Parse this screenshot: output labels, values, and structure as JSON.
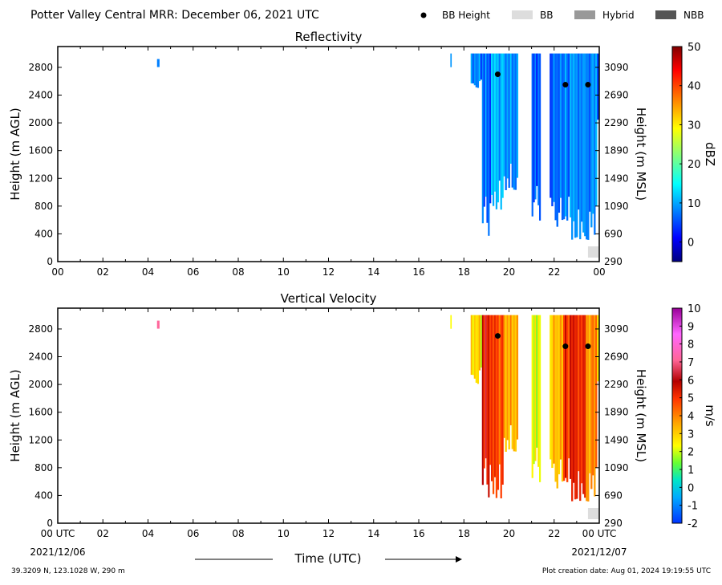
{
  "header": {
    "title": "Potter Valley Central MRR:  December 06, 2021 UTC",
    "legend": [
      {
        "label": "BB Height",
        "symbol": "dot",
        "color": "#000000"
      },
      {
        "label": "BB",
        "symbol": "box",
        "color": "#dddddd"
      },
      {
        "label": "Hybrid",
        "symbol": "box",
        "color": "#999999"
      },
      {
        "label": "NBB",
        "symbol": "box",
        "color": "#555555"
      }
    ]
  },
  "footer": {
    "location": "39.3209 N, 123.1028 W, 290 m",
    "creation": "Plot creation date: Aug 01, 2024 19:19:55 UTC",
    "start_date": "2021/12/06",
    "end_date": "2021/12/07",
    "xlabel": "Time (UTC)"
  },
  "chart_data": [
    {
      "type": "heatmap",
      "title": "Reflectivity",
      "xlabel": "Time (UTC)",
      "ylabel": "Height (m AGL)",
      "ylabel_right": "Height (m MSL)",
      "x_ticks": [
        "00",
        "02",
        "04",
        "06",
        "08",
        "10",
        "12",
        "14",
        "16",
        "18",
        "20",
        "22",
        "00"
      ],
      "xlim": [
        0,
        24
      ],
      "ylim": [
        0,
        3100
      ],
      "y_ticks": [
        0,
        400,
        800,
        1200,
        1600,
        2000,
        2400,
        2800
      ],
      "y_ticks_right": [
        290,
        690,
        1090,
        1490,
        1890,
        2290,
        2690,
        3090
      ],
      "colorbar": {
        "label": "dBZ",
        "range": [
          -5,
          50
        ],
        "ticks": [
          0,
          10,
          20,
          30,
          40,
          50
        ],
        "colormap": "jet"
      },
      "bb_height": [
        [
          19.5,
          2700
        ],
        [
          22.5,
          2550
        ],
        [
          23.5,
          2550
        ]
      ],
      "bb_flag": [
        {
          "x0": 23.5,
          "x1": 24,
          "type": "BB"
        }
      ],
      "echo_columns": [
        {
          "x0": 4.4,
          "x1": 4.5,
          "base": 2800,
          "top": 2920,
          "value": 5
        },
        {
          "x0": 17.4,
          "x1": 17.45,
          "base": 2800,
          "top": 3000,
          "value": 10
        },
        {
          "x0": 18.3,
          "x1": 18.8,
          "base": 2500,
          "top": 3000,
          "value": 9
        },
        {
          "x0": 18.8,
          "x1": 19.2,
          "base": 300,
          "top": 3000,
          "value": 8
        },
        {
          "x0": 19.2,
          "x1": 19.75,
          "base": 700,
          "top": 3000,
          "value": 12
        },
        {
          "x0": 19.75,
          "x1": 20.4,
          "base": 900,
          "top": 3000,
          "value": 9
        },
        {
          "x0": 21.0,
          "x1": 21.4,
          "base": 550,
          "top": 3000,
          "value": 7
        },
        {
          "x0": 21.8,
          "x1": 22.4,
          "base": 500,
          "top": 3000,
          "value": 8
        },
        {
          "x0": 22.4,
          "x1": 23.4,
          "base": 300,
          "top": 3000,
          "value": 10
        },
        {
          "x0": 23.4,
          "x1": 23.9,
          "base": 300,
          "top": 3000,
          "value": 9
        },
        {
          "x0": 23.9,
          "x1": 24.0,
          "base": 2000,
          "top": 3000,
          "value": 6
        }
      ]
    },
    {
      "type": "heatmap",
      "title": "Vertical Velocity",
      "xlabel": "Time (UTC)",
      "ylabel": "Height (m AGL)",
      "ylabel_right": "Height (m MSL)",
      "x_ticks": [
        "00 UTC",
        "02",
        "04",
        "06",
        "08",
        "10",
        "12",
        "14",
        "16",
        "18",
        "20",
        "22",
        "00 UTC"
      ],
      "xlim": [
        0,
        24
      ],
      "ylim": [
        0,
        3100
      ],
      "y_ticks": [
        0,
        400,
        800,
        1200,
        1600,
        2000,
        2400,
        2800
      ],
      "y_ticks_right": [
        290,
        690,
        1090,
        1490,
        1890,
        2290,
        2690,
        3090
      ],
      "colorbar": {
        "label": "m/s",
        "range": [
          -2,
          10
        ],
        "ticks": [
          -2,
          -1,
          0,
          1,
          2,
          3,
          4,
          5,
          6,
          7,
          8,
          9,
          10
        ],
        "colormap": "velocity"
      },
      "bb_height": [
        [
          19.5,
          2700
        ],
        [
          22.5,
          2550
        ],
        [
          23.5,
          2550
        ]
      ],
      "bb_flag": [
        {
          "x0": 23.5,
          "x1": 24,
          "type": "BB"
        }
      ],
      "echo_columns": [
        {
          "x0": 4.4,
          "x1": 4.5,
          "base": 2800,
          "top": 2920,
          "value": 6.5
        },
        {
          "x0": 17.4,
          "x1": 17.45,
          "base": 2800,
          "top": 3000,
          "value": 2.5
        },
        {
          "x0": 18.3,
          "x1": 18.8,
          "base": 2000,
          "top": 3000,
          "value": 3
        },
        {
          "x0": 18.8,
          "x1": 19.2,
          "base": 300,
          "top": 3000,
          "value": 5.8
        },
        {
          "x0": 19.2,
          "x1": 19.75,
          "base": 300,
          "top": 3000,
          "value": 5
        },
        {
          "x0": 19.75,
          "x1": 20.4,
          "base": 900,
          "top": 3000,
          "value": 3.5
        },
        {
          "x0": 21.0,
          "x1": 21.4,
          "base": 550,
          "top": 3000,
          "value": 2.5
        },
        {
          "x0": 21.8,
          "x1": 22.4,
          "base": 500,
          "top": 3000,
          "value": 3.5
        },
        {
          "x0": 22.4,
          "x1": 23.4,
          "base": 300,
          "top": 3000,
          "value": 5.5
        },
        {
          "x0": 23.4,
          "x1": 23.9,
          "base": 300,
          "top": 3000,
          "value": 4
        },
        {
          "x0": 23.9,
          "x1": 24.0,
          "base": 2000,
          "top": 3000,
          "value": 3
        }
      ]
    }
  ]
}
